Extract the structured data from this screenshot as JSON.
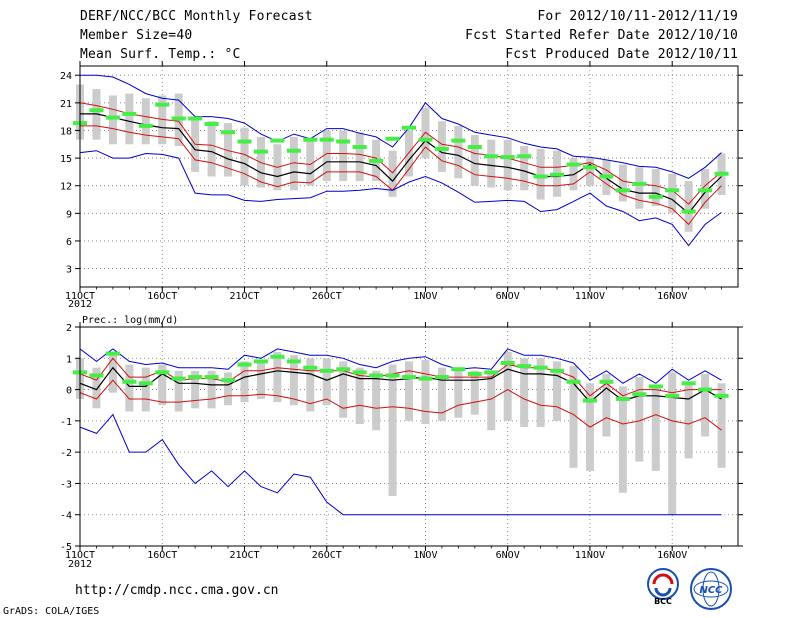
{
  "header": {
    "title": "DERF/NCC/BCC Monthly Forecast",
    "member_size": "Member Size=40",
    "variable": "Mean Surf. Temp.: °C",
    "period": "For 2012/10/11-2012/11/19",
    "started": "Fcst Started Refer Date 2012/10/10",
    "produced": "Fcst Produced Date 2012/10/11"
  },
  "footer": {
    "url": "http://cmdp.ncc.cma.gov.cn",
    "grads": "GrADS: COLA/IGES",
    "logo_bcc": "BCC",
    "logo_ncc": "NCC"
  },
  "colors": {
    "mean": "#000000",
    "spread": "#d01010",
    "extreme": "#0000cc",
    "box": "#cccccc",
    "marker": "#44ee44",
    "grid": "#777777"
  },
  "chart_data": [
    {
      "type": "line",
      "title": "Mean Surf. Temp.: °C",
      "ylabel": "°C",
      "ylim": [
        1,
        25
      ],
      "yticks": [
        3,
        6,
        9,
        12,
        15,
        18,
        21,
        24
      ],
      "xlim": [
        1,
        41
      ],
      "xticks": [
        {
          "x": 1,
          "label": "11OCT"
        },
        {
          "x": 6,
          "label": "16OCT"
        },
        {
          "x": 11,
          "label": "21OCT"
        },
        {
          "x": 16,
          "label": "26OCT"
        },
        {
          "x": 22,
          "label": "1NOV"
        },
        {
          "x": 27,
          "label": "6NOV"
        },
        {
          "x": 32,
          "label": "11NOV"
        },
        {
          "x": 37,
          "label": "16NOV"
        }
      ],
      "year_label": "2012",
      "grid": "dotted",
      "x": [
        1,
        2,
        3,
        4,
        5,
        6,
        7,
        8,
        9,
        10,
        11,
        12,
        13,
        14,
        15,
        16,
        17,
        18,
        19,
        20,
        21,
        22,
        23,
        24,
        25,
        26,
        27,
        28,
        29,
        30,
        31,
        32,
        33,
        34,
        35,
        36,
        37,
        38,
        39,
        40
      ],
      "series": [
        {
          "name": "max",
          "values": [
            24.0,
            24.0,
            23.8,
            23.0,
            22.0,
            21.5,
            21.3,
            19.5,
            19.5,
            19.3,
            18.8,
            17.6,
            16.8,
            17.6,
            17.1,
            18.2,
            18.2,
            17.7,
            17.3,
            16.2,
            18.3,
            21.0,
            19.3,
            18.7,
            17.8,
            17.5,
            17.2,
            16.6,
            16.2,
            16.0,
            15.2,
            15.1,
            14.8,
            14.5,
            14.1,
            14.0,
            13.5,
            12.8,
            14.0,
            15.6
          ]
        },
        {
          "name": "upper",
          "values": [
            21.0,
            20.7,
            20.3,
            19.8,
            19.5,
            19.2,
            19.0,
            16.5,
            16.4,
            15.8,
            15.4,
            14.5,
            14.0,
            14.5,
            14.3,
            15.5,
            15.5,
            15.4,
            15.0,
            13.4,
            15.6,
            17.8,
            16.5,
            16.2,
            15.5,
            15.3,
            15.0,
            14.5,
            14.0,
            14.0,
            14.2,
            14.5,
            13.7,
            12.5,
            12.2,
            12.0,
            11.5,
            10.0,
            12.0,
            13.5
          ]
        },
        {
          "name": "mean",
          "values": [
            19.8,
            19.8,
            19.4,
            19.0,
            18.6,
            18.3,
            18.2,
            15.9,
            15.7,
            14.9,
            14.4,
            13.4,
            13.0,
            13.5,
            13.3,
            14.6,
            14.6,
            14.6,
            14.2,
            12.5,
            14.8,
            16.9,
            15.6,
            15.3,
            14.4,
            14.2,
            14.0,
            13.6,
            13.0,
            13.0,
            13.2,
            14.3,
            12.8,
            11.6,
            11.2,
            11.2,
            10.5,
            9.0,
            11.3,
            13.0
          ]
        },
        {
          "name": "lower",
          "values": [
            18.5,
            18.5,
            18.2,
            17.8,
            17.5,
            17.3,
            17.1,
            14.8,
            14.5,
            13.9,
            13.3,
            12.4,
            11.9,
            12.4,
            12.3,
            13.5,
            13.5,
            13.5,
            13.0,
            11.5,
            13.8,
            16.2,
            14.7,
            14.2,
            13.2,
            13.0,
            12.8,
            12.5,
            12.0,
            12.0,
            12.2,
            13.5,
            12.2,
            11.0,
            10.4,
            10.1,
            9.5,
            7.8,
            10.2,
            12.0
          ]
        },
        {
          "name": "min",
          "values": [
            15.6,
            15.8,
            15.0,
            15.0,
            15.5,
            15.4,
            15.0,
            11.2,
            11.0,
            11.0,
            10.4,
            10.3,
            10.5,
            10.6,
            10.7,
            11.4,
            11.4,
            11.5,
            11.7,
            11.5,
            12.4,
            13.0,
            12.3,
            11.3,
            10.2,
            10.3,
            10.4,
            10.3,
            9.2,
            9.4,
            10.3,
            11.2,
            9.8,
            9.2,
            8.2,
            8.5,
            7.8,
            5.5,
            7.8,
            9.1
          ]
        },
        {
          "name": "ensemble_box_top",
          "values": [
            23.0,
            22.5,
            21.8,
            22.0,
            21.5,
            21.8,
            22.0,
            19.5,
            19.0,
            18.8,
            18.3,
            17.3,
            16.5,
            17.3,
            16.8,
            18.0,
            18.0,
            17.8,
            17.0,
            15.8,
            18.0,
            20.5,
            19.0,
            18.5,
            17.5,
            17.0,
            17.0,
            16.3,
            16.0,
            15.8,
            15.0,
            15.0,
            14.8,
            14.3,
            14.0,
            13.8,
            13.3,
            12.5,
            13.8,
            15.5
          ]
        },
        {
          "name": "ensemble_box_bottom",
          "values": [
            17.0,
            17.0,
            16.5,
            16.5,
            16.5,
            16.5,
            16.3,
            13.5,
            13.0,
            13.0,
            12.0,
            11.8,
            11.5,
            11.5,
            12.0,
            12.5,
            12.5,
            12.5,
            12.5,
            10.8,
            13.0,
            15.0,
            13.5,
            12.8,
            12.0,
            11.8,
            11.5,
            11.5,
            10.5,
            10.8,
            11.5,
            12.0,
            11.0,
            10.3,
            9.5,
            9.8,
            9.0,
            7.0,
            9.5,
            11.0
          ]
        },
        {
          "name": "observed_marker",
          "values": [
            18.8,
            20.2,
            19.4,
            19.8,
            18.5,
            20.8,
            19.3,
            19.3,
            18.7,
            17.8,
            16.8,
            15.7,
            16.9,
            15.8,
            17.0,
            17.0,
            16.8,
            16.2,
            14.7,
            17.1,
            18.3,
            17.0,
            16.0,
            16.9,
            16.2,
            15.2,
            15.1,
            15.2,
            13.0,
            13.2,
            14.3,
            14.0,
            13.0,
            11.5,
            12.2,
            10.8,
            11.5,
            9.2,
            11.5,
            13.3
          ]
        }
      ]
    },
    {
      "type": "line",
      "title": "Prec.: log(mm/d)",
      "ylabel": "log(mm/d)",
      "ylim": [
        -5,
        2
      ],
      "yticks": [
        2,
        1,
        0,
        -1,
        -2,
        -3,
        -4,
        -5
      ],
      "xlim": [
        1,
        41
      ],
      "xticks": [
        {
          "x": 1,
          "label": "11OCT"
        },
        {
          "x": 6,
          "label": "16OCT"
        },
        {
          "x": 11,
          "label": "21OCT"
        },
        {
          "x": 16,
          "label": "26OCT"
        },
        {
          "x": 22,
          "label": "1NOV"
        },
        {
          "x": 27,
          "label": "6NOV"
        },
        {
          "x": 32,
          "label": "11NOV"
        },
        {
          "x": 37,
          "label": "16NOV"
        }
      ],
      "year_label": "2012",
      "grid": "dotted",
      "x": [
        1,
        2,
        3,
        4,
        5,
        6,
        7,
        8,
        9,
        10,
        11,
        12,
        13,
        14,
        15,
        16,
        17,
        18,
        19,
        20,
        21,
        22,
        23,
        24,
        25,
        26,
        27,
        28,
        29,
        30,
        31,
        32,
        33,
        34,
        35,
        36,
        37,
        38,
        39,
        40
      ],
      "series": [
        {
          "name": "max",
          "values": [
            1.3,
            0.9,
            1.3,
            0.9,
            0.8,
            0.85,
            0.7,
            0.7,
            0.7,
            0.65,
            1.1,
            1.0,
            1.3,
            1.2,
            1.1,
            1.1,
            1.0,
            0.8,
            0.7,
            0.9,
            1.0,
            1.05,
            0.8,
            0.65,
            0.7,
            0.65,
            1.3,
            1.1,
            1.1,
            1.0,
            0.85,
            0.3,
            0.6,
            0.2,
            0.5,
            0.2,
            0.65,
            0.3,
            0.6,
            0.3
          ]
        },
        {
          "name": "upper",
          "values": [
            0.5,
            0.3,
            1.0,
            0.4,
            0.4,
            0.6,
            0.3,
            0.35,
            0.35,
            0.25,
            0.6,
            0.6,
            0.7,
            0.65,
            0.6,
            0.6,
            0.6,
            0.45,
            0.4,
            0.5,
            0.6,
            0.5,
            0.4,
            0.4,
            0.4,
            0.4,
            0.8,
            0.7,
            0.7,
            0.6,
            0.4,
            -0.2,
            0.2,
            -0.2,
            0.0,
            0.0,
            -0.1,
            0.0,
            0.0,
            0.0
          ]
        },
        {
          "name": "mean",
          "values": [
            0.2,
            0.0,
            0.7,
            0.1,
            0.1,
            0.5,
            0.2,
            0.2,
            0.15,
            0.15,
            0.4,
            0.5,
            0.6,
            0.55,
            0.5,
            0.3,
            0.5,
            0.35,
            0.35,
            0.3,
            0.35,
            0.4,
            0.3,
            0.3,
            0.3,
            0.35,
            0.65,
            0.5,
            0.5,
            0.45,
            0.2,
            -0.4,
            0.05,
            -0.35,
            -0.2,
            -0.2,
            -0.25,
            -0.3,
            0.0,
            -0.3
          ]
        },
        {
          "name": "lower",
          "values": [
            -0.1,
            -0.3,
            0.3,
            -0.3,
            -0.3,
            -0.4,
            -0.4,
            -0.35,
            -0.3,
            -0.2,
            -0.2,
            -0.15,
            -0.2,
            -0.3,
            -0.45,
            -0.3,
            -0.6,
            -0.5,
            -0.6,
            -0.55,
            -0.6,
            -0.7,
            -0.75,
            -0.5,
            -0.4,
            -0.3,
            0.0,
            -0.3,
            -0.5,
            -0.55,
            -0.8,
            -1.2,
            -0.9,
            -1.1,
            -1.0,
            -0.8,
            -1.0,
            -1.1,
            -0.9,
            -1.3
          ]
        },
        {
          "name": "min",
          "values": [
            -1.2,
            -1.4,
            -0.8,
            -2.0,
            -2.0,
            -1.6,
            -2.4,
            -3.0,
            -2.6,
            -3.1,
            -2.6,
            -3.1,
            -3.3,
            -2.7,
            -2.8,
            -3.6,
            -4.0,
            -4.0,
            -4.0,
            -4.0,
            -4.0,
            -4.0,
            -4.0,
            -4.0,
            -4.0,
            -4.0,
            -4.0,
            -4.0,
            -4.0,
            -4.0,
            -4.0,
            -4.0,
            -4.0,
            -4.0,
            -4.0,
            -4.0,
            -4.0,
            -4.0,
            -4.0,
            -4.0
          ]
        },
        {
          "name": "ensemble_box_top",
          "values": [
            1.0,
            0.7,
            1.2,
            0.8,
            0.7,
            0.8,
            0.6,
            0.6,
            0.6,
            0.55,
            0.9,
            0.9,
            1.2,
            1.1,
            1.0,
            1.0,
            0.9,
            0.7,
            0.6,
            0.8,
            0.9,
            0.95,
            0.7,
            0.6,
            0.6,
            0.6,
            1.2,
            1.0,
            1.0,
            0.9,
            0.75,
            0.2,
            0.5,
            0.1,
            0.4,
            0.1,
            0.55,
            0.2,
            0.5,
            0.2
          ]
        },
        {
          "name": "ensemble_box_bottom",
          "values": [
            -0.3,
            -0.6,
            -0.1,
            -0.7,
            -0.7,
            -0.5,
            -0.7,
            -0.6,
            -0.6,
            -0.5,
            -0.4,
            -0.3,
            -0.4,
            -0.5,
            -0.7,
            -0.5,
            -0.9,
            -1.1,
            -1.3,
            -3.4,
            -1.0,
            -1.1,
            -1.0,
            -0.9,
            -0.8,
            -1.3,
            -1.0,
            -1.2,
            -1.2,
            -1.0,
            -2.5,
            -2.6,
            -1.5,
            -3.3,
            -2.3,
            -2.6,
            -4.0,
            -2.2,
            -1.5,
            -2.5
          ]
        },
        {
          "name": "observed_marker",
          "values": [
            0.55,
            0.45,
            1.15,
            0.25,
            0.2,
            0.55,
            0.35,
            0.4,
            0.4,
            0.3,
            0.8,
            0.9,
            1.05,
            0.9,
            0.7,
            0.6,
            0.65,
            0.55,
            0.45,
            0.45,
            0.4,
            0.35,
            0.4,
            0.65,
            0.5,
            0.55,
            0.85,
            0.75,
            0.7,
            0.6,
            0.25,
            -0.35,
            0.25,
            -0.3,
            -0.15,
            0.1,
            -0.2,
            0.2,
            0.0,
            -0.2
          ]
        }
      ]
    }
  ]
}
